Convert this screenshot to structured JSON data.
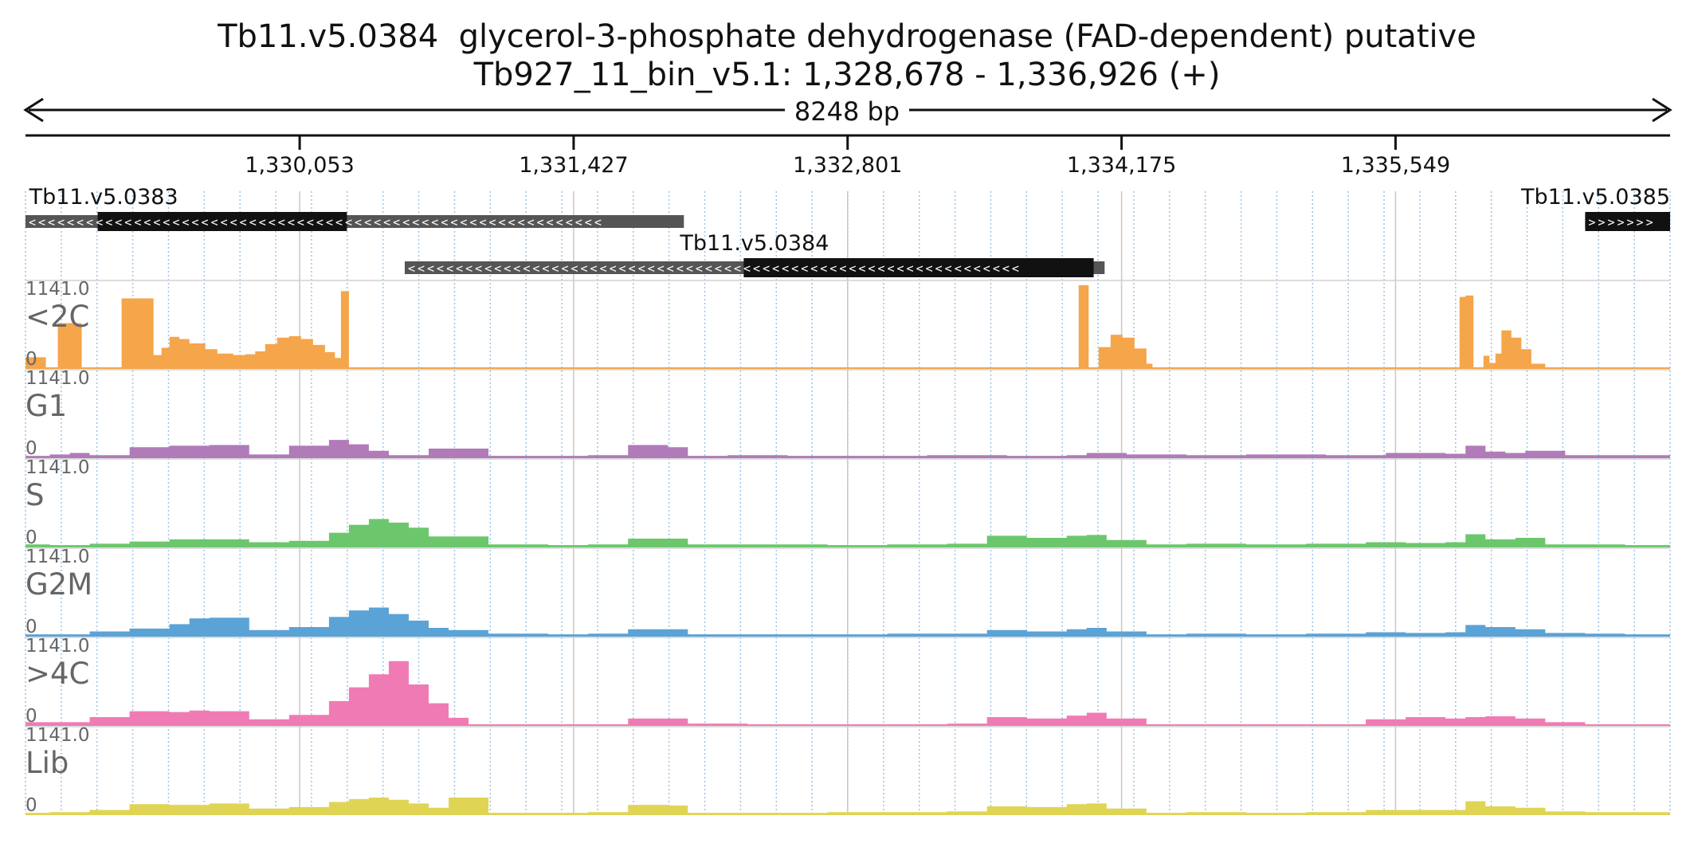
{
  "header": {
    "title": "Tb11.v5.0384  glycerol-3-phosphate dehydrogenase (FAD-dependent) putative",
    "subtitle": "Tb927_11_bin_v5.1: 1,328,678 - 1,336,926 (+)"
  },
  "span": {
    "label": "8248 bp"
  },
  "chart_data": {
    "type": "area",
    "title": "Tb11.v5.0384  glycerol-3-phosphate dehydrogenase (FAD-dependent) putative",
    "subtitle": "Tb927_11_bin_v5.1: 1,328,678 - 1,336,926 (+)",
    "xlim": [
      1328678,
      1336926
    ],
    "x_ticks": [
      1330053,
      1331427,
      1332801,
      1334175,
      1335549
    ],
    "x_tick_labels": [
      "1,330,053",
      "1,331,427",
      "1,332,801",
      "1,334,175",
      "1,335,549"
    ],
    "grid": true,
    "genes": [
      {
        "name": "Tb11.v5.0383",
        "strand": "-",
        "start": 1328678,
        "end": 1331980,
        "cds_start": 1329040,
        "cds_end": 1330290
      },
      {
        "name": "Tb11.v5.0384",
        "strand": "-",
        "start": 1330580,
        "end": 1334090,
        "cds_start": 1332280,
        "cds_end": 1334035
      },
      {
        "name": "Tb11.v5.0385",
        "strand": "+",
        "start": 1336500,
        "end": 1336926,
        "cds_start": 1336500,
        "cds_end": 1336926
      }
    ],
    "tracks": [
      {
        "name": "<2C",
        "color": "#f5a54a",
        "ylim": [
          0,
          1141.0
        ],
        "ylim_label": "1141.0",
        "zero_label": "0",
        "x": [
          1328678,
          1328720,
          1328780,
          1328840,
          1328900,
          1328960,
          1329000,
          1329040,
          1329100,
          1329160,
          1329240,
          1329320,
          1329360,
          1329400,
          1329450,
          1329500,
          1329580,
          1329640,
          1329720,
          1329780,
          1329830,
          1329880,
          1329940,
          1330000,
          1330060,
          1330120,
          1330180,
          1330230,
          1330260,
          1330290,
          1330300,
          1330400,
          1330800,
          1331200,
          1331600,
          1332000,
          1332400,
          1332800,
          1333200,
          1333600,
          1333900,
          1333945,
          1333960,
          1334000,
          1334010,
          1334060,
          1334120,
          1334180,
          1334240,
          1334300,
          1334330,
          1334500,
          1335000,
          1335500,
          1335830,
          1335870,
          1335900,
          1335940,
          1335990,
          1336020,
          1336050,
          1336080,
          1336130,
          1336180,
          1336230,
          1336300,
          1336500,
          1336926
        ],
        "values": [
          150,
          150,
          0,
          620,
          620,
          0,
          0,
          0,
          0,
          960,
          960,
          180,
          280,
          430,
          400,
          340,
          260,
          200,
          180,
          190,
          230,
          330,
          420,
          440,
          400,
          320,
          220,
          140,
          1060,
          1060,
          0,
          10,
          10,
          10,
          10,
          10,
          10,
          10,
          10,
          10,
          0,
          0,
          1141,
          1141,
          0,
          290,
          460,
          420,
          270,
          60,
          0,
          10,
          10,
          10,
          0,
          980,
          1000,
          0,
          170,
          70,
          200,
          520,
          420,
          260,
          60,
          0,
          10,
          10
        ]
      },
      {
        "name": "G1",
        "color": "#b07bb8",
        "ylim": [
          0,
          1141.0
        ],
        "ylim_label": "1141.0",
        "zero_label": "0",
        "x": [
          1328678,
          1328800,
          1328900,
          1329000,
          1329200,
          1329400,
          1329600,
          1329800,
          1330000,
          1330200,
          1330300,
          1330400,
          1330500,
          1330700,
          1331000,
          1331300,
          1331500,
          1331700,
          1331900,
          1332000,
          1332200,
          1332500,
          1332900,
          1333200,
          1333600,
          1333900,
          1334000,
          1334200,
          1334500,
          1334800,
          1335200,
          1335500,
          1335800,
          1335900,
          1336000,
          1336100,
          1336200,
          1336400,
          1336600,
          1336926
        ],
        "values": [
          20,
          40,
          60,
          30,
          140,
          160,
          170,
          40,
          160,
          240,
          180,
          90,
          30,
          120,
          20,
          20,
          30,
          170,
          140,
          20,
          30,
          20,
          20,
          30,
          20,
          30,
          60,
          40,
          30,
          40,
          30,
          60,
          50,
          160,
          80,
          60,
          90,
          30,
          30,
          40
        ]
      },
      {
        "name": "S",
        "color": "#6cc76c",
        "ylim": [
          0,
          1141.0
        ],
        "ylim_label": "1141.0",
        "zero_label": "0",
        "x": [
          1328678,
          1328800,
          1329000,
          1329200,
          1329400,
          1329600,
          1329800,
          1330000,
          1330200,
          1330300,
          1330400,
          1330500,
          1330600,
          1330700,
          1331000,
          1331300,
          1331500,
          1331700,
          1331900,
          1332000,
          1332300,
          1332700,
          1333000,
          1333300,
          1333500,
          1333700,
          1333900,
          1334000,
          1334100,
          1334300,
          1334500,
          1334800,
          1335100,
          1335400,
          1335600,
          1335800,
          1335900,
          1336000,
          1336150,
          1336300,
          1336500,
          1336700,
          1336926
        ],
        "values": [
          30,
          20,
          40,
          70,
          100,
          100,
          60,
          80,
          190,
          300,
          380,
          330,
          260,
          140,
          30,
          20,
          30,
          110,
          110,
          30,
          30,
          20,
          30,
          40,
          150,
          120,
          150,
          160,
          90,
          30,
          40,
          30,
          40,
          60,
          50,
          60,
          170,
          100,
          120,
          30,
          30,
          20,
          30
        ]
      },
      {
        "name": "G2M",
        "color": "#5aa3d6",
        "ylim": [
          0,
          1141.0
        ],
        "ylim_label": "1141.0",
        "zero_label": "0",
        "x": [
          1328678,
          1328800,
          1329000,
          1329200,
          1329400,
          1329500,
          1329600,
          1329800,
          1330000,
          1330200,
          1330300,
          1330400,
          1330500,
          1330600,
          1330700,
          1330800,
          1331000,
          1331300,
          1331500,
          1331700,
          1331900,
          1332000,
          1332300,
          1332700,
          1333000,
          1333300,
          1333500,
          1333700,
          1333900,
          1334000,
          1334100,
          1334300,
          1334500,
          1334800,
          1335100,
          1335400,
          1335600,
          1335800,
          1335900,
          1336000,
          1336150,
          1336300,
          1336500,
          1336700,
          1336926
        ],
        "values": [
          20,
          20,
          60,
          100,
          160,
          240,
          250,
          80,
          120,
          260,
          350,
          390,
          300,
          210,
          110,
          80,
          30,
          20,
          30,
          90,
          90,
          20,
          20,
          20,
          30,
          30,
          80,
          60,
          90,
          110,
          60,
          20,
          30,
          20,
          30,
          50,
          40,
          50,
          150,
          120,
          90,
          40,
          30,
          20,
          40
        ]
      },
      {
        "name": ">4C",
        "color": "#f07bb4",
        "ylim": [
          0,
          1141.0
        ],
        "ylim_label": "1141.0",
        "zero_label": "0",
        "x": [
          1328678,
          1328800,
          1329000,
          1329200,
          1329400,
          1329500,
          1329600,
          1329800,
          1330000,
          1330200,
          1330300,
          1330400,
          1330500,
          1330600,
          1330700,
          1330800,
          1330900,
          1331000,
          1331300,
          1331500,
          1331700,
          1331900,
          1332000,
          1332300,
          1332700,
          1333000,
          1333300,
          1333500,
          1333700,
          1333900,
          1334000,
          1334100,
          1334300,
          1334500,
          1334800,
          1335100,
          1335400,
          1335600,
          1335800,
          1335900,
          1336000,
          1336150,
          1336300,
          1336500,
          1336700,
          1336926
        ],
        "values": [
          40,
          40,
          110,
          190,
          180,
          200,
          190,
          80,
          140,
          330,
          520,
          700,
          880,
          560,
          300,
          100,
          10,
          10,
          10,
          10,
          90,
          90,
          20,
          10,
          10,
          10,
          20,
          110,
          90,
          130,
          170,
          90,
          10,
          10,
          10,
          10,
          80,
          110,
          90,
          110,
          120,
          90,
          40,
          10,
          10,
          10
        ]
      },
      {
        "name": "Lib",
        "color": "#e0d455",
        "ylim": [
          0,
          1141.0
        ],
        "ylim_label": "1141.0",
        "zero_label": "0",
        "x": [
          1328678,
          1328800,
          1329000,
          1329200,
          1329400,
          1329600,
          1329800,
          1330000,
          1330200,
          1330300,
          1330400,
          1330500,
          1330600,
          1330700,
          1330800,
          1331000,
          1331300,
          1331500,
          1331700,
          1331900,
          1332000,
          1332300,
          1332700,
          1333000,
          1333300,
          1333500,
          1333700,
          1333900,
          1334000,
          1334100,
          1334300,
          1334500,
          1334800,
          1335100,
          1335400,
          1335600,
          1335800,
          1335900,
          1336000,
          1336150,
          1336300,
          1336500,
          1336700,
          1336926
        ],
        "values": [
          20,
          30,
          60,
          140,
          130,
          150,
          80,
          100,
          170,
          210,
          230,
          200,
          150,
          90,
          230,
          20,
          20,
          30,
          130,
          120,
          20,
          20,
          30,
          30,
          40,
          110,
          100,
          140,
          150,
          80,
          20,
          30,
          20,
          30,
          60,
          60,
          60,
          180,
          110,
          90,
          40,
          30,
          30,
          40
        ]
      }
    ]
  }
}
